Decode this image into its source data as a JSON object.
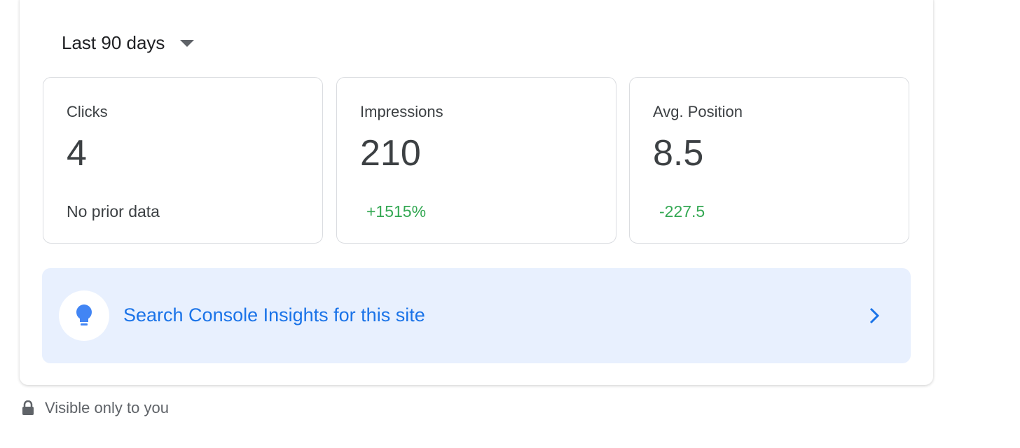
{
  "period": {
    "label": "Last 90 days"
  },
  "metrics": [
    {
      "label": "Clicks",
      "value": "4",
      "change": "No prior data"
    },
    {
      "label": "Impressions",
      "value": "210",
      "change": "+1515%"
    },
    {
      "label": "Avg. Position",
      "value": "8.5",
      "change": "-227.5"
    }
  ],
  "insights": {
    "label": "Search Console Insights for this site"
  },
  "footer": {
    "label": "Visible only to you"
  }
}
